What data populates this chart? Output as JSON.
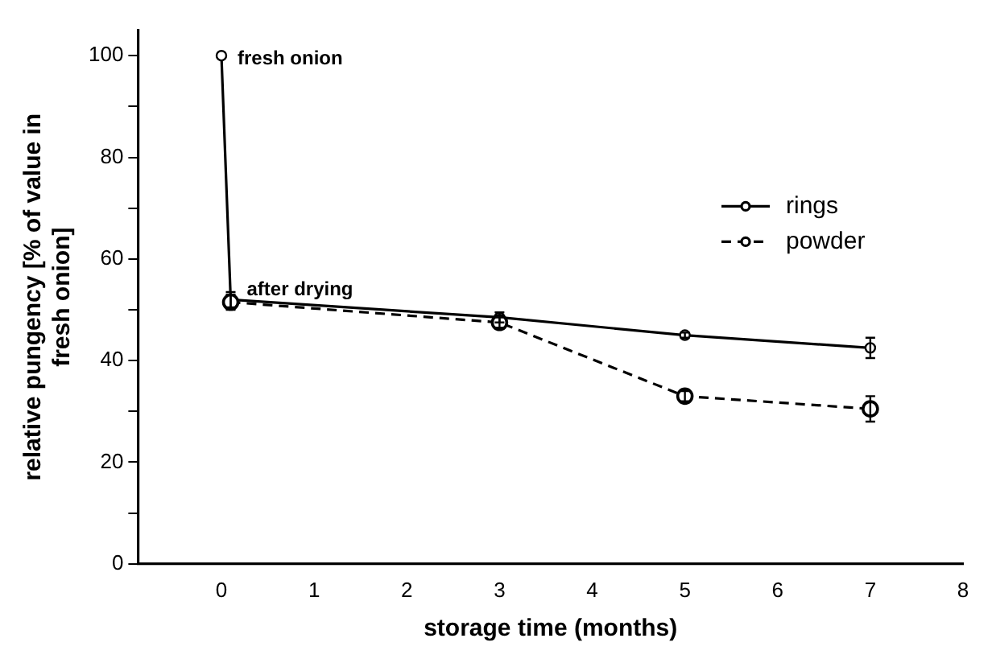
{
  "chart_data": {
    "type": "line",
    "xlabel": "storage time (months)",
    "ylabel": "relative pungency [% of value in fresh onion]",
    "xlim": [
      -0.9,
      8
    ],
    "xticks": [
      0,
      1,
      2,
      3,
      4,
      5,
      6,
      7,
      8
    ],
    "ylim": [
      0,
      105
    ],
    "yticks": [
      0,
      {
        "value": 10,
        "label": null
      },
      20,
      {
        "value": 30,
        "label": null
      },
      40,
      {
        "value": 50,
        "label": null
      },
      60,
      {
        "value": 70,
        "label": null
      },
      80,
      {
        "value": 90,
        "label": null
      },
      100
    ],
    "series": [
      {
        "name": "rings",
        "color": "#000000",
        "line_style": "solid",
        "x": [
          0,
          0.1,
          3,
          5,
          7
        ],
        "values": [
          100,
          52,
          48.5,
          45,
          42.5
        ],
        "errors": [
          null,
          1.5,
          1,
          0.5,
          2
        ]
      },
      {
        "name": "powder",
        "color": "#000000",
        "line_style": "dashed",
        "x": [
          0.1,
          3,
          5,
          7
        ],
        "values": [
          51.5,
          47.5,
          33,
          30.5
        ],
        "errors": [
          1.5,
          1,
          1,
          2.5
        ]
      }
    ],
    "marker": "circle",
    "grid": false,
    "legend": "right",
    "annotations": [
      {
        "text": "fresh onion",
        "x": 0,
        "y": 100
      },
      {
        "text": "after drying",
        "x": 0.1,
        "y": 52
      }
    ]
  }
}
